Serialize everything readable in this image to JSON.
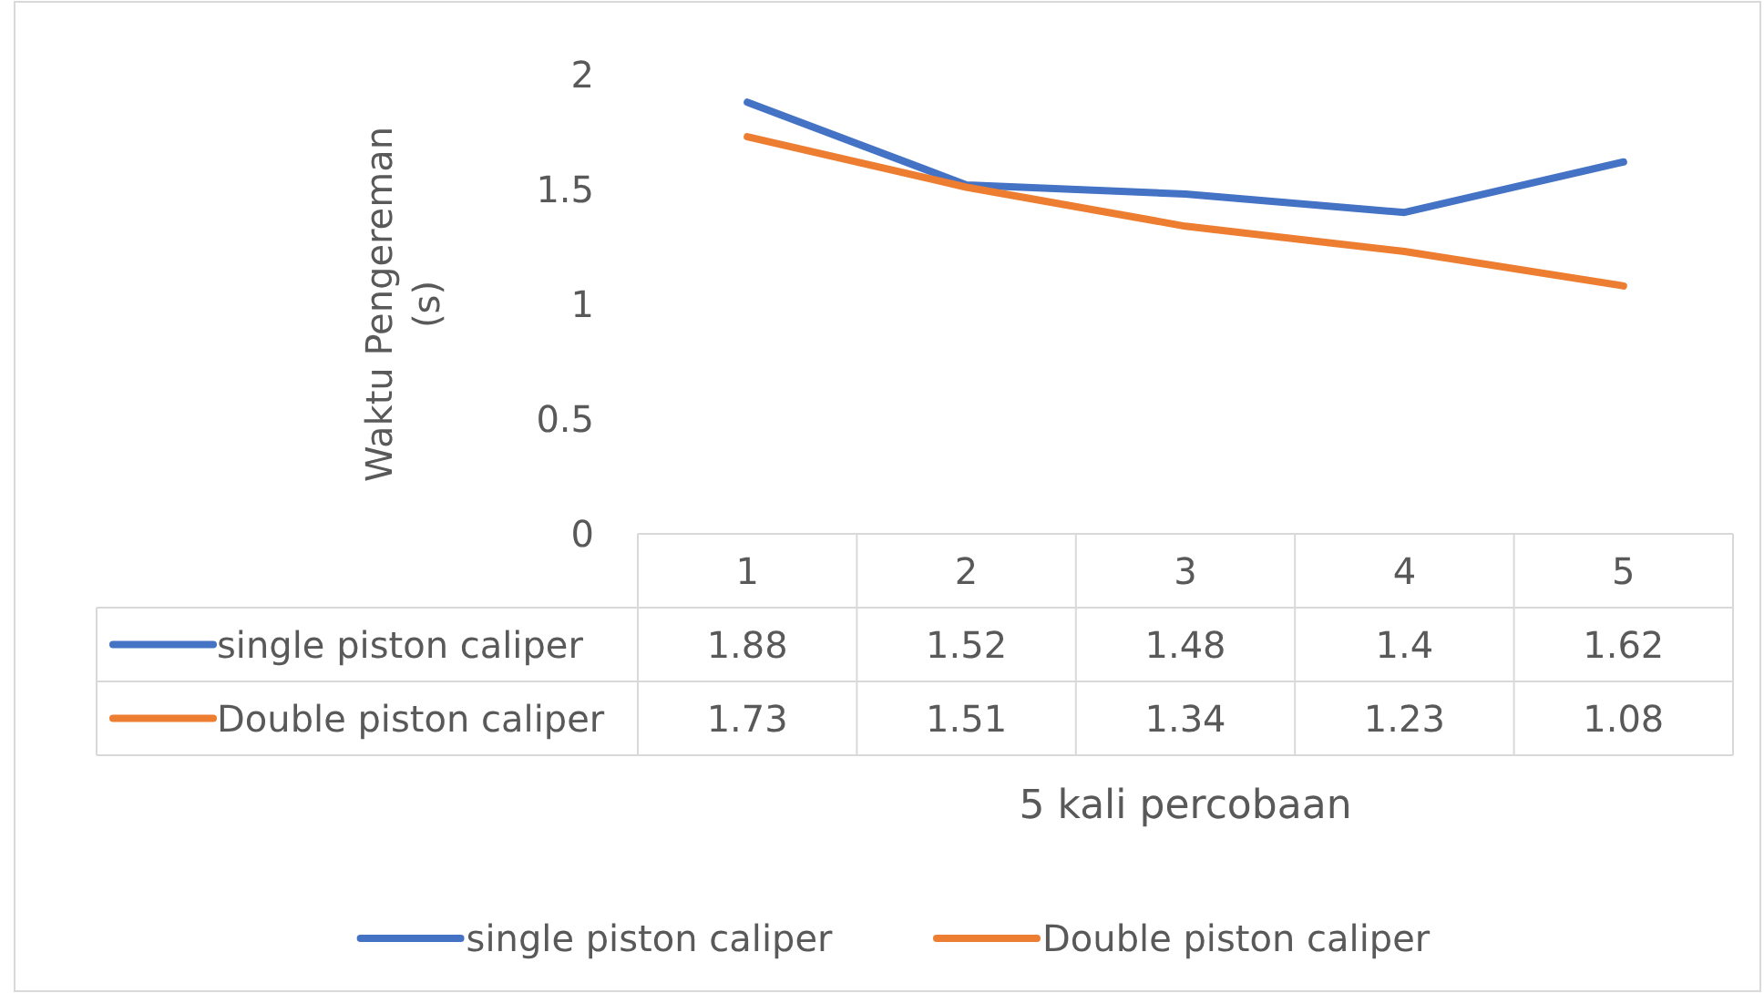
{
  "chart_data": {
    "type": "line",
    "ylabel": "Waktu Pengereman (s)",
    "xlabel": "5 kali percobaan",
    "categories": [
      "1",
      "2",
      "3",
      "4",
      "5"
    ],
    "series": [
      {
        "name": "single piston caliper",
        "color": "#4472c4",
        "values": [
          1.88,
          1.52,
          1.48,
          1.4,
          1.62
        ]
      },
      {
        "name": "Double piston caliper",
        "color": "#ed7d31",
        "values": [
          1.73,
          1.51,
          1.34,
          1.23,
          1.08
        ]
      }
    ],
    "ylim": [
      0,
      2
    ],
    "yticks": [
      0,
      0.5,
      1,
      1.5,
      2
    ],
    "grid": false,
    "legend": "bottom",
    "data_labels": true,
    "marker": "none",
    "line_style": "solid"
  }
}
